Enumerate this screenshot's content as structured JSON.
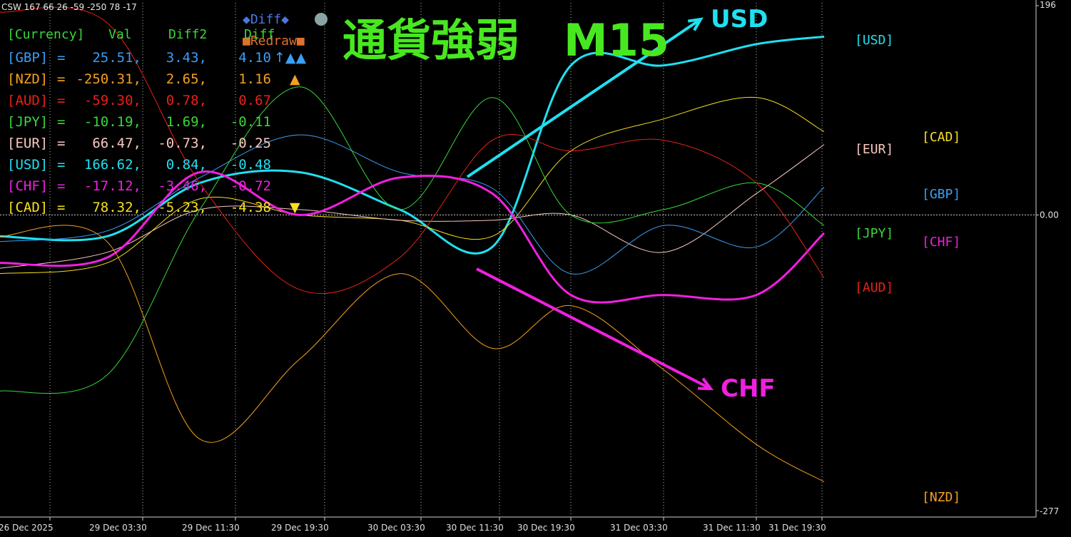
{
  "window": {
    "indicator_header": "CSW 167 66 26 -59 -250 78 -17"
  },
  "annotation": {
    "title": "通貨強弱　M15",
    "usd_arrow_label": "USD",
    "chf_arrow_label": "CHF"
  },
  "panel": {
    "headers": [
      "[Currency]",
      "Val",
      "Diff2",
      "Diff"
    ],
    "rows": [
      {
        "cur": "[GBP]",
        "eq": "=",
        "val": "25.51,",
        "d2": "3.43,",
        "d": "4.10",
        "signal": "↑▲▲",
        "color": "#3a9ef5"
      },
      {
        "cur": "[NZD]",
        "eq": "=",
        "val": "-250.31,",
        "d2": "2.65,",
        "d": "1.16",
        "signal": "▲",
        "color": "#f5a020"
      },
      {
        "cur": "[AUD]",
        "eq": "=",
        "val": "-59.30,",
        "d2": "0.78,",
        "d": "0.67",
        "signal": "",
        "color": "#e8201a"
      },
      {
        "cur": "[JPY]",
        "eq": "=",
        "val": "-10.19,",
        "d2": "1.69,",
        "d": "-0.11",
        "signal": "",
        "color": "#38d838"
      },
      {
        "cur": "[EUR]",
        "eq": "=",
        "val": "66.47,",
        "d2": "-0.73,",
        "d": "-0.25",
        "signal": "",
        "color": "#f8c8c0"
      },
      {
        "cur": "[USD]",
        "eq": "=",
        "val": "166.62,",
        "d2": "0.84,",
        "d": "-0.48",
        "signal": "",
        "color": "#20e0f0"
      },
      {
        "cur": "[CHF]",
        "eq": "=",
        "val": "-17.12,",
        "d2": "-3.46,",
        "d": "-0.72",
        "signal": "",
        "color": "#f020e0"
      },
      {
        "cur": "[CAD]",
        "eq": "=",
        "val": "78.32,",
        "d2": "-5.23,",
        "d": "-4.38",
        "signal": "▼",
        "color": "#f8e020"
      }
    ],
    "buttons": {
      "diff": "◆Diff◆",
      "redraw": "■Redraw■"
    }
  },
  "right_labels": [
    {
      "text": "[USD]",
      "color": "#20e0f0"
    },
    {
      "text": "[CAD]",
      "color": "#f8e020"
    },
    {
      "text": "[EUR]",
      "color": "#f8c8c0"
    },
    {
      "text": "[GBP]",
      "color": "#3a9ef5"
    },
    {
      "text": "[JPY]",
      "color": "#38d838"
    },
    {
      "text": "[CHF]",
      "color": "#f020e0"
    },
    {
      "text": "[AUD]",
      "color": "#e8201a"
    },
    {
      "text": "[NZD]",
      "color": "#f5a020"
    }
  ],
  "chart_data": {
    "type": "line",
    "title": "",
    "x": [
      "26 Dec 2025",
      "29 Dec 03:30",
      "29 Dec 11:30",
      "29 Dec 19:30",
      "30 Dec 03:30",
      "30 Dec 11:30",
      "30 Dec 19:30",
      "31 Dec 03:30",
      "31 Dec 11:30",
      "31 Dec 19:30"
    ],
    "ylim": [
      -277,
      196
    ],
    "y_tick_labels": [
      "196",
      "0.00",
      "-277"
    ],
    "grid": true,
    "series": [
      {
        "name": "USD",
        "color": "#20e0f0",
        "width": 3,
        "values": [
          -20,
          -20,
          30,
          40,
          5,
          -30,
          140,
          140,
          160,
          167
        ]
      },
      {
        "name": "CAD",
        "color": "#f8e020",
        "width": 1,
        "values": [
          -55,
          -45,
          15,
          0,
          -5,
          -20,
          60,
          90,
          110,
          78
        ]
      },
      {
        "name": "EUR",
        "color": "#f8c8c0",
        "width": 1,
        "values": [
          -50,
          -35,
          5,
          5,
          -5,
          -5,
          0,
          -35,
          20,
          66
        ]
      },
      {
        "name": "GBP",
        "color": "#3a9ef5",
        "width": 1,
        "values": [
          -25,
          -15,
          35,
          75,
          40,
          25,
          -55,
          -10,
          -30,
          26
        ]
      },
      {
        "name": "JPY",
        "color": "#38d838",
        "width": 1,
        "values": [
          -165,
          -150,
          5,
          120,
          5,
          110,
          0,
          5,
          30,
          -10
        ]
      },
      {
        "name": "CHF",
        "color": "#f020e0",
        "width": 3,
        "values": [
          -45,
          -40,
          40,
          0,
          35,
          20,
          -75,
          -75,
          -75,
          -17
        ]
      },
      {
        "name": "AUD",
        "color": "#e8201a",
        "width": 1,
        "values": [
          190,
          180,
          30,
          -70,
          -40,
          70,
          60,
          70,
          30,
          -59
        ]
      },
      {
        "name": "NZD",
        "color": "#f5a020",
        "width": 1,
        "values": [
          -20,
          -25,
          -210,
          -135,
          -55,
          -125,
          -85,
          -145,
          -215,
          -250
        ]
      }
    ]
  }
}
